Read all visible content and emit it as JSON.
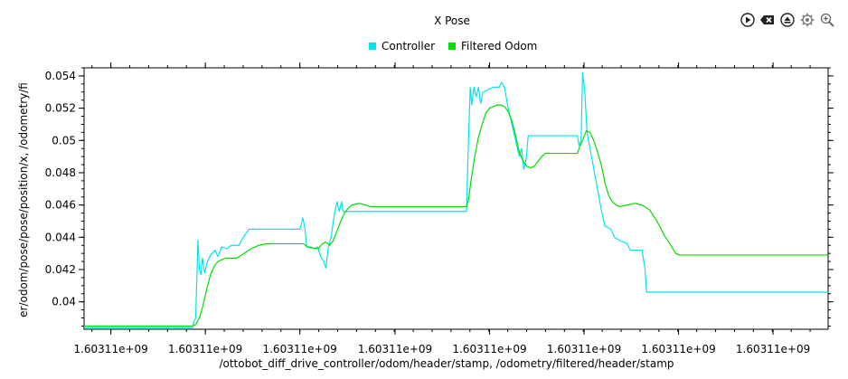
{
  "toolbar": {
    "icons": [
      "play-icon",
      "clear-icon",
      "eject-icon",
      "settings-icon",
      "zoom-icon"
    ]
  },
  "chart_data": {
    "type": "line",
    "title": "X Pose",
    "xlabel": "/ottobot_diff_drive_controller/odom/header/stamp, /odometry/filtered/header/stamp",
    "ylabel": "er/odom/pose/pose/position/x, /odometry/fi",
    "xlim": [
      0,
      100
    ],
    "ylim": [
      0.0383,
      0.0545
    ],
    "x_ticks": [
      {
        "x": 3.6,
        "label": "1.60311e+09"
      },
      {
        "x": 16.3,
        "label": "1.60311e+09"
      },
      {
        "x": 29.0,
        "label": "1.60311e+09"
      },
      {
        "x": 41.8,
        "label": "1.60311e+09"
      },
      {
        "x": 54.5,
        "label": "1.60311e+09"
      },
      {
        "x": 67.2,
        "label": "1.60311e+09"
      },
      {
        "x": 79.9,
        "label": "1.60311e+09"
      },
      {
        "x": 92.6,
        "label": "1.60311e+09"
      }
    ],
    "y_ticks": [
      {
        "y": 0.04,
        "label": "0.04"
      },
      {
        "y": 0.042,
        "label": "0.042"
      },
      {
        "y": 0.044,
        "label": "0.044"
      },
      {
        "y": 0.046,
        "label": "0.046"
      },
      {
        "y": 0.048,
        "label": "0.048"
      },
      {
        "y": 0.05,
        "label": "0.05"
      },
      {
        "y": 0.052,
        "label": "0.052"
      },
      {
        "y": 0.054,
        "label": "0.054"
      }
    ],
    "legend_position": "top-center",
    "grid": false,
    "series": [
      {
        "name": "Controller",
        "color": "#00e5ee",
        "points": [
          [
            0,
            0.0384
          ],
          [
            14.6,
            0.0384
          ],
          [
            14.7,
            0.0387
          ],
          [
            15.0,
            0.039
          ],
          [
            15.3,
            0.0438
          ],
          [
            15.5,
            0.042
          ],
          [
            15.7,
            0.0417
          ],
          [
            15.9,
            0.0427
          ],
          [
            16.2,
            0.0418
          ],
          [
            16.6,
            0.0425
          ],
          [
            17.0,
            0.0429
          ],
          [
            17.6,
            0.0432
          ],
          [
            18.0,
            0.0428
          ],
          [
            18.5,
            0.0434
          ],
          [
            19.2,
            0.0433
          ],
          [
            19.8,
            0.0435
          ],
          [
            20.8,
            0.0435
          ],
          [
            21.4,
            0.044
          ],
          [
            21.7,
            0.0442
          ],
          [
            22.2,
            0.0445
          ],
          [
            29.0,
            0.0445
          ],
          [
            29.2,
            0.0448
          ],
          [
            29.4,
            0.0452
          ],
          [
            29.7,
            0.0445
          ],
          [
            29.9,
            0.0434
          ],
          [
            30.5,
            0.0434
          ],
          [
            31.0,
            0.0433
          ],
          [
            31.4,
            0.0434
          ],
          [
            31.8,
            0.0428
          ],
          [
            32.2,
            0.0425
          ],
          [
            32.5,
            0.0421
          ],
          [
            32.8,
            0.0433
          ],
          [
            33.2,
            0.044
          ],
          [
            33.5,
            0.045
          ],
          [
            33.8,
            0.0458
          ],
          [
            34.0,
            0.0462
          ],
          [
            34.3,
            0.0456
          ],
          [
            34.6,
            0.0462
          ],
          [
            34.8,
            0.0456
          ],
          [
            51.4,
            0.0456
          ],
          [
            51.6,
            0.049
          ],
          [
            51.9,
            0.0533
          ],
          [
            52.1,
            0.0522
          ],
          [
            52.4,
            0.0533
          ],
          [
            52.7,
            0.0527
          ],
          [
            53.0,
            0.0533
          ],
          [
            53.3,
            0.0523
          ],
          [
            53.6,
            0.053
          ],
          [
            55.0,
            0.0533
          ],
          [
            55.8,
            0.0533
          ],
          [
            56.1,
            0.0536
          ],
          [
            56.5,
            0.0533
          ],
          [
            57.0,
            0.052
          ],
          [
            57.5,
            0.051
          ],
          [
            58.0,
            0.05
          ],
          [
            58.5,
            0.049
          ],
          [
            58.8,
            0.0495
          ],
          [
            59.1,
            0.0482
          ],
          [
            59.4,
            0.0488
          ],
          [
            59.7,
            0.0503
          ],
          [
            66.3,
            0.0503
          ],
          [
            66.5,
            0.0497
          ],
          [
            66.8,
            0.05
          ],
          [
            67.0,
            0.0542
          ],
          [
            67.3,
            0.053
          ],
          [
            67.6,
            0.0505
          ],
          [
            68.0,
            0.0495
          ],
          [
            68.4,
            0.0485
          ],
          [
            68.8,
            0.0475
          ],
          [
            69.2,
            0.0465
          ],
          [
            69.6,
            0.0455
          ],
          [
            70.0,
            0.0447
          ],
          [
            70.8,
            0.0445
          ],
          [
            71.3,
            0.044
          ],
          [
            72.0,
            0.0438
          ],
          [
            73.0,
            0.0436
          ],
          [
            73.4,
            0.0432
          ],
          [
            75.0,
            0.0432
          ],
          [
            75.4,
            0.042
          ],
          [
            75.6,
            0.0406
          ],
          [
            100,
            0.0406
          ]
        ]
      },
      {
        "name": "Filtered Odom",
        "color": "#00dd00",
        "points": [
          [
            0,
            0.0385
          ],
          [
            14.5,
            0.0385
          ],
          [
            15.0,
            0.0386
          ],
          [
            15.5,
            0.039
          ],
          [
            16.0,
            0.0398
          ],
          [
            16.5,
            0.0408
          ],
          [
            17.0,
            0.0417
          ],
          [
            17.5,
            0.0422
          ],
          [
            18.0,
            0.0425
          ],
          [
            19.0,
            0.0427
          ],
          [
            20.5,
            0.0427
          ],
          [
            21.5,
            0.043
          ],
          [
            22.5,
            0.0433
          ],
          [
            23.5,
            0.0435
          ],
          [
            24.5,
            0.0436
          ],
          [
            26.0,
            0.0436
          ],
          [
            28.0,
            0.0436
          ],
          [
            29.0,
            0.0436
          ],
          [
            29.5,
            0.0436
          ],
          [
            30.0,
            0.0434
          ],
          [
            31.0,
            0.0433
          ],
          [
            31.5,
            0.0433
          ],
          [
            32.0,
            0.0436
          ],
          [
            32.5,
            0.0437
          ],
          [
            33.0,
            0.0435
          ],
          [
            33.5,
            0.0438
          ],
          [
            34.0,
            0.0444
          ],
          [
            34.5,
            0.045
          ],
          [
            35.0,
            0.0455
          ],
          [
            35.5,
            0.0458
          ],
          [
            36.0,
            0.046
          ],
          [
            37.0,
            0.0461
          ],
          [
            38.5,
            0.0459
          ],
          [
            45.0,
            0.0459
          ],
          [
            51.4,
            0.0459
          ],
          [
            51.7,
            0.0464
          ],
          [
            52.0,
            0.0475
          ],
          [
            52.5,
            0.049
          ],
          [
            53.0,
            0.0502
          ],
          [
            53.5,
            0.051
          ],
          [
            54.0,
            0.0517
          ],
          [
            54.5,
            0.052
          ],
          [
            55.0,
            0.0521
          ],
          [
            55.5,
            0.0522
          ],
          [
            56.0,
            0.0522
          ],
          [
            56.5,
            0.0521
          ],
          [
            57.0,
            0.0518
          ],
          [
            57.5,
            0.0512
          ],
          [
            58.0,
            0.0503
          ],
          [
            58.5,
            0.0493
          ],
          [
            59.0,
            0.0487
          ],
          [
            59.5,
            0.0484
          ],
          [
            60.0,
            0.0483
          ],
          [
            60.5,
            0.0484
          ],
          [
            61.0,
            0.0487
          ],
          [
            61.5,
            0.049
          ],
          [
            62.0,
            0.0492
          ],
          [
            66.3,
            0.0492
          ],
          [
            66.6,
            0.0496
          ],
          [
            67.0,
            0.05
          ],
          [
            67.5,
            0.0506
          ],
          [
            68.0,
            0.0505
          ],
          [
            68.5,
            0.05
          ],
          [
            69.0,
            0.0493
          ],
          [
            69.5,
            0.0485
          ],
          [
            70.0,
            0.0474
          ],
          [
            70.5,
            0.0466
          ],
          [
            71.0,
            0.0462
          ],
          [
            71.5,
            0.046
          ],
          [
            72.0,
            0.0459
          ],
          [
            73.0,
            0.046
          ],
          [
            74.0,
            0.0461
          ],
          [
            75.0,
            0.046
          ],
          [
            76.0,
            0.0457
          ],
          [
            77.0,
            0.045
          ],
          [
            78.0,
            0.0441
          ],
          [
            79.0,
            0.0434
          ],
          [
            79.5,
            0.043
          ],
          [
            80.0,
            0.0429
          ],
          [
            100,
            0.0429
          ]
        ]
      }
    ]
  }
}
